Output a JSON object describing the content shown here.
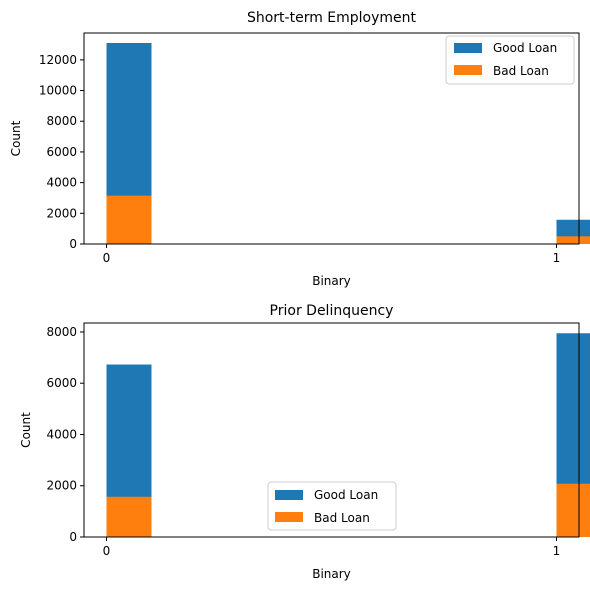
{
  "chart_data": [
    {
      "type": "bar",
      "stacked": "overlay",
      "title": "Short-term Employment",
      "xlabel": "Binary",
      "ylabel": "Count",
      "categories": [
        "0",
        "1"
      ],
      "series": [
        {
          "name": "Good Loan",
          "color": "#1f77b4",
          "values": [
            13100,
            1580
          ]
        },
        {
          "name": "Bad Loan",
          "color": "#ff7f0e",
          "values": [
            3150,
            500
          ]
        }
      ],
      "yticks": [
        0,
        2000,
        4000,
        6000,
        8000,
        10000,
        12000
      ],
      "ytick_labels": [
        "0",
        "2000",
        "4000",
        "6000",
        "8000",
        "10000",
        "12000"
      ],
      "xticks": [
        0,
        1
      ],
      "xtick_labels": [
        "0",
        "1"
      ],
      "ylim": [
        0,
        13750
      ],
      "xlim": [
        -0.05,
        1.05
      ],
      "bar_width": 0.1,
      "legend_loc": "upper right"
    },
    {
      "type": "bar",
      "stacked": "overlay",
      "title": "Prior Delinquency",
      "xlabel": "Binary",
      "ylabel": "Count",
      "categories": [
        "0",
        "1"
      ],
      "series": [
        {
          "name": "Good Loan",
          "color": "#1f77b4",
          "values": [
            6730,
            7950
          ]
        },
        {
          "name": "Bad Loan",
          "color": "#ff7f0e",
          "values": [
            1570,
            2080
          ]
        }
      ],
      "yticks": [
        0,
        2000,
        4000,
        6000,
        8000
      ],
      "ytick_labels": [
        "0",
        "2000",
        "4000",
        "6000",
        "8000"
      ],
      "xticks": [
        0,
        1
      ],
      "xtick_labels": [
        "0",
        "1"
      ],
      "ylim": [
        0,
        8350
      ],
      "xlim": [
        -0.05,
        1.05
      ],
      "bar_width": 0.1,
      "legend_loc": "lower center"
    }
  ]
}
